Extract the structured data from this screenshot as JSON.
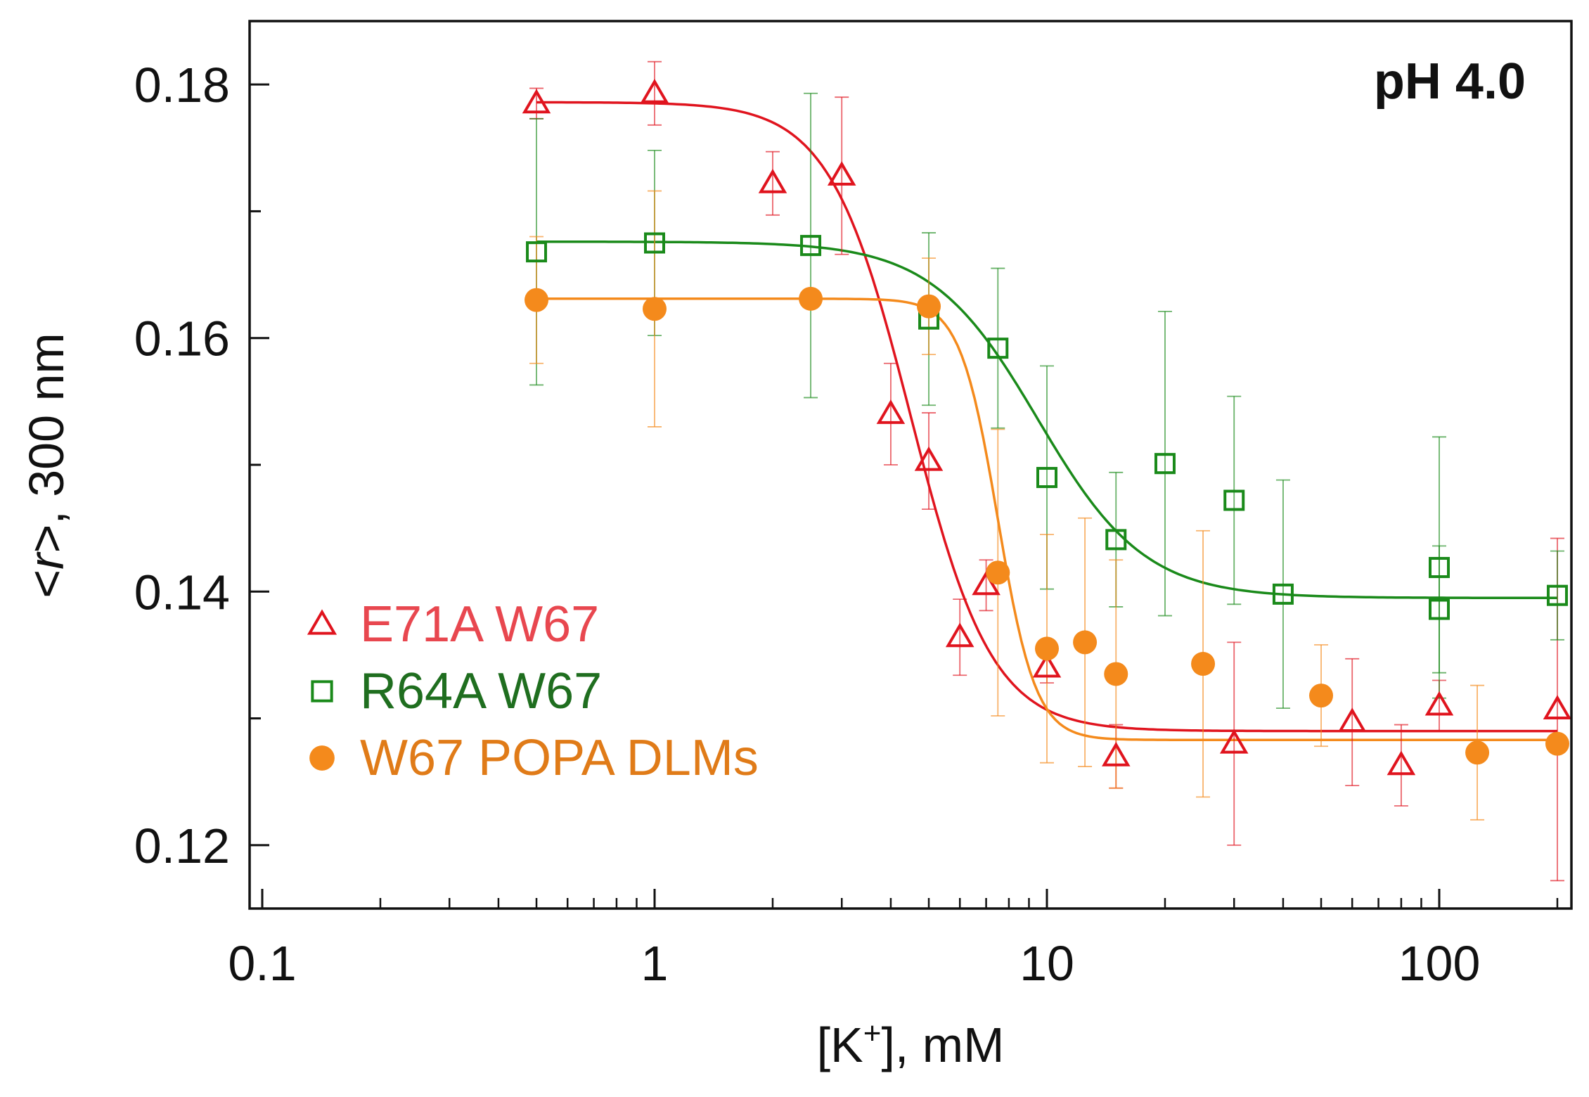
{
  "chart_data": {
    "type": "scatter",
    "annotation": "pH 4.0",
    "xlabel_prefix": "[K",
    "xlabel_sup": "+",
    "xlabel_suffix": "], mM",
    "ylabel_prefix": "<",
    "ylabel_italic": "r",
    "ylabel_suffix": ">, 300 nm",
    "xscale": "log",
    "xlim": [
      0.1,
      220
    ],
    "ylim": [
      0.115,
      0.185
    ],
    "xticks": [
      {
        "value": 0.1,
        "label": "0.1"
      },
      {
        "value": 1,
        "label": "1"
      },
      {
        "value": 10,
        "label": "10"
      },
      {
        "value": 100,
        "label": "100"
      }
    ],
    "yticks": [
      {
        "value": 0.12,
        "label": "0.12"
      },
      {
        "value": 0.14,
        "label": "0.14"
      },
      {
        "value": 0.16,
        "label": "0.16"
      },
      {
        "value": 0.18,
        "label": "0.18"
      }
    ],
    "yminor": [
      0.13,
      0.15,
      0.17
    ],
    "legend_position": "left",
    "series": [
      {
        "name": "E71A W67",
        "marker": "open-triangle",
        "color": "#e0141e",
        "label_color": "#e8474f",
        "fit": {
          "top": 0.1786,
          "bottom": 0.129,
          "x0": 4.5,
          "slope": 4.2
        },
        "points": [
          {
            "x": 0.5,
            "y": 0.1785,
            "err": 0.0012
          },
          {
            "x": 1,
            "y": 0.1793,
            "err": 0.0025
          },
          {
            "x": 2,
            "y": 0.1722,
            "err": 0.0025
          },
          {
            "x": 3,
            "y": 0.1728,
            "err": 0.0062
          },
          {
            "x": 4,
            "y": 0.154,
            "err": 0.004
          },
          {
            "x": 5,
            "y": 0.1503,
            "err": 0.0038
          },
          {
            "x": 6,
            "y": 0.1364,
            "err": 0.003
          },
          {
            "x": 7,
            "y": 0.1405,
            "err": 0.002
          },
          {
            "x": 10,
            "y": 0.134,
            "err": 0.0012
          },
          {
            "x": 15,
            "y": 0.127,
            "err": 0.0025
          },
          {
            "x": 30,
            "y": 0.128,
            "err": 0.008
          },
          {
            "x": 60,
            "y": 0.1297,
            "err": 0.005
          },
          {
            "x": 80,
            "y": 0.1263,
            "err": 0.0032
          },
          {
            "x": 100,
            "y": 0.131,
            "err": 0.002
          },
          {
            "x": 200,
            "y": 0.1307,
            "err": 0.0135
          }
        ]
      },
      {
        "name": "R64A W67",
        "marker": "open-square",
        "color": "#1a8a1a",
        "label_color": "#1f6e1f",
        "fit": {
          "top": 0.1676,
          "bottom": 0.1395,
          "x0": 9.5,
          "slope": 3.2
        },
        "points": [
          {
            "x": 0.5,
            "y": 0.1668,
            "err": 0.0105
          },
          {
            "x": 1,
            "y": 0.1675,
            "err": 0.0073
          },
          {
            "x": 2.5,
            "y": 0.1673,
            "err": 0.012
          },
          {
            "x": 5,
            "y": 0.1615,
            "err": 0.0068
          },
          {
            "x": 7.5,
            "y": 0.1592,
            "err": 0.0063
          },
          {
            "x": 10,
            "y": 0.149,
            "err": 0.0088
          },
          {
            "x": 15,
            "y": 0.1441,
            "err": 0.0053
          },
          {
            "x": 20,
            "y": 0.1501,
            "err": 0.012
          },
          {
            "x": 30,
            "y": 0.1472,
            "err": 0.0082
          },
          {
            "x": 40,
            "y": 0.1398,
            "err": 0.009
          },
          {
            "x": 100,
            "y": 0.1419,
            "err": 0.0103
          },
          {
            "x": 100,
            "y": 0.1386,
            "err": 0.005
          },
          {
            "x": 200,
            "y": 0.1397,
            "err": 0.0035
          }
        ]
      },
      {
        "name": "W67 POPA DLMs",
        "marker": "filled-circle",
        "color": "#f48a1c",
        "label_color": "#e07b18",
        "fit": {
          "top": 0.1631,
          "bottom": 0.1283,
          "x0": 7.5,
          "slope": 9
        },
        "points": [
          {
            "x": 0.5,
            "y": 0.163,
            "err": 0.005
          },
          {
            "x": 1,
            "y": 0.1623,
            "err": 0.0093
          },
          {
            "x": 2.5,
            "y": 0.1631,
            "err": 0.0
          },
          {
            "x": 5,
            "y": 0.1625,
            "err": 0.0038
          },
          {
            "x": 7.5,
            "y": 0.1415,
            "err": 0.0113
          },
          {
            "x": 10,
            "y": 0.1355,
            "err": 0.009
          },
          {
            "x": 12.5,
            "y": 0.136,
            "err": 0.0098
          },
          {
            "x": 15,
            "y": 0.1335,
            "err": 0.009
          },
          {
            "x": 25,
            "y": 0.1343,
            "err": 0.0105
          },
          {
            "x": 50,
            "y": 0.1318,
            "err": 0.004
          },
          {
            "x": 125,
            "y": 0.1273,
            "err": 0.0053
          },
          {
            "x": 200,
            "y": 0.128,
            "err": 0.0
          }
        ]
      }
    ]
  }
}
